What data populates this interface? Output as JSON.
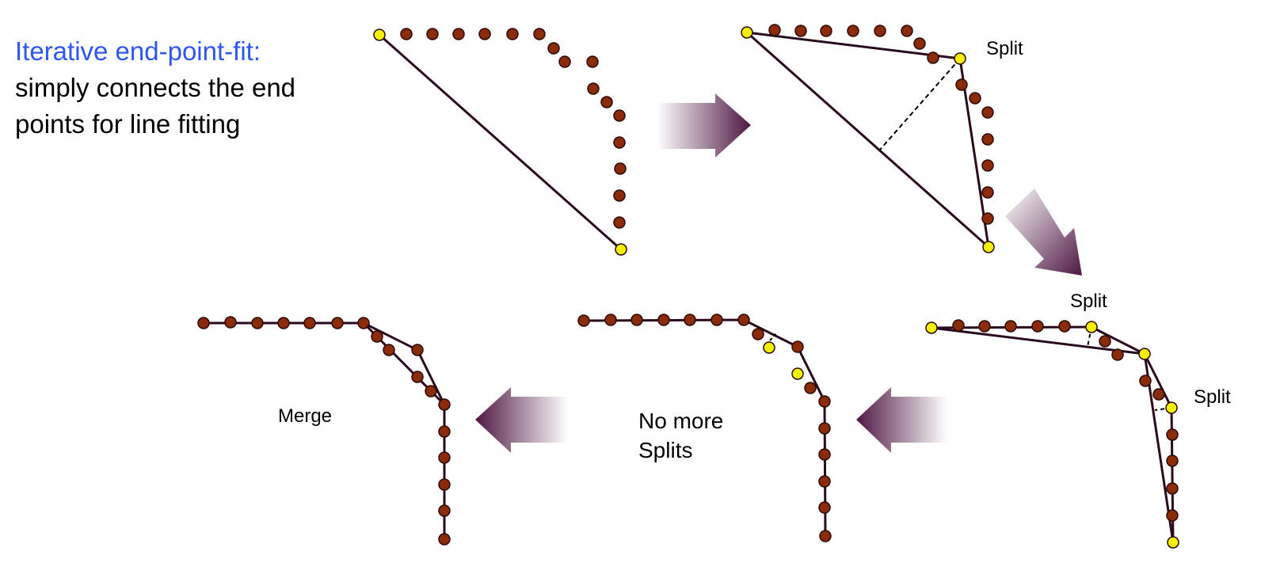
{
  "description": {
    "title": "Iterative end-point-fit:",
    "body": "simply connects the end points for line fitting"
  },
  "labels": {
    "split": "Split",
    "no_more_line1": "No more",
    "no_more_line2": "Splits",
    "merge": "Merge"
  },
  "colors": {
    "point_fill": "#8b2b08",
    "point_stroke": "#2a0a00",
    "endpoint_fill": "#f5f000",
    "line": "#2a0a1e",
    "arrow_dark": "#4e1743",
    "title_blue": "#2f57f0"
  },
  "steps": [
    {
      "step": 1,
      "shows": "initial point set with a single line joining the two end points"
    },
    {
      "step": 2,
      "shows": "farthest point from the line splits it into two segments",
      "label": "Split"
    },
    {
      "step": 3,
      "shows": "both segments split again",
      "labels": [
        "Split",
        "Split"
      ]
    },
    {
      "step": 4,
      "shows": "no further splits needed",
      "label": "No more Splits"
    },
    {
      "step": 5,
      "shows": "collinear segments merged",
      "label": "Merge"
    }
  ]
}
